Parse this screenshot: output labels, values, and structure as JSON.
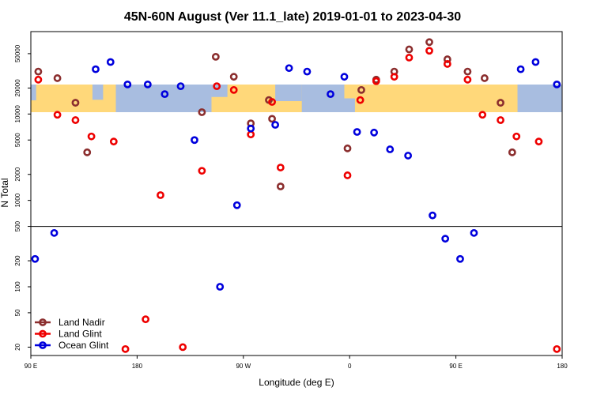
{
  "chart_data": {
    "type": "scatter",
    "title": "45N-60N August (Ver 11.1_late)   2019-01-01 to 2023-04-30",
    "xlabel": "Longitude (deg E)",
    "ylabel": "N Total",
    "y_scale": "log",
    "ylim": [
      16,
      90000
    ],
    "reference_line_y": 500,
    "background": "world map band, latitudes 45N-60N, land shown in gold, ocean in light blue, repeated across the longitude axis",
    "background_colors": {
      "land": "#ffd87a",
      "ocean": "#a8bde0"
    },
    "x_ticks": [
      {
        "pos": 0,
        "label": "90 E"
      },
      {
        "pos": 1,
        "label": "180"
      },
      {
        "pos": 2,
        "label": "90 W"
      },
      {
        "pos": 3,
        "label": "0"
      },
      {
        "pos": 4,
        "label": "90 E"
      },
      {
        "pos": 5,
        "label": "180"
      }
    ],
    "y_ticks": [
      {
        "value": 20,
        "label": "20"
      },
      {
        "value": 50,
        "label": "50"
      },
      {
        "value": 100,
        "label": "100"
      },
      {
        "value": 200,
        "label": "200"
      },
      {
        "value": 500,
        "label": "500"
      },
      {
        "value": 1000,
        "label": "1000"
      },
      {
        "value": 2000,
        "label": "2000"
      },
      {
        "value": 5000,
        "label": "5000"
      },
      {
        "value": 10000,
        "label": "10000"
      },
      {
        "value": 20000,
        "label": "20000"
      },
      {
        "value": 50000,
        "label": "50000"
      }
    ],
    "legend_position": "bottom-left",
    "series": [
      {
        "name": "Land Nadir",
        "color": "#8b2e2e",
        "points": [
          [
            0.07,
            31000
          ],
          [
            0.25,
            26000
          ],
          [
            0.42,
            13500
          ],
          [
            0.53,
            3600
          ],
          [
            1.74,
            46000
          ],
          [
            1.61,
            10500
          ],
          [
            1.91,
            27000
          ],
          [
            2.07,
            7800
          ],
          [
            2.27,
            8800
          ],
          [
            2.24,
            14500
          ],
          [
            2.35,
            1450
          ],
          [
            2.98,
            4000
          ],
          [
            3.11,
            19000
          ],
          [
            3.25,
            25000
          ],
          [
            3.42,
            31000
          ],
          [
            3.56,
            56000
          ],
          [
            3.75,
            68000
          ],
          [
            3.92,
            43000
          ],
          [
            4.11,
            31000
          ],
          [
            4.27,
            26000
          ],
          [
            4.42,
            13500
          ],
          [
            4.53,
            3600
          ]
        ]
      },
      {
        "name": "Land Glint",
        "color": "#ee0000",
        "points": [
          [
            0.07,
            25000
          ],
          [
            0.25,
            9800
          ],
          [
            0.42,
            8500
          ],
          [
            0.57,
            5500
          ],
          [
            0.78,
            4800
          ],
          [
            1.22,
            1150
          ],
          [
            1.61,
            2200
          ],
          [
            1.75,
            21000
          ],
          [
            1.91,
            19000
          ],
          [
            2.07,
            5800
          ],
          [
            2.27,
            13800
          ],
          [
            2.35,
            2400
          ],
          [
            2.98,
            1950
          ],
          [
            3.1,
            14500
          ],
          [
            3.25,
            24000
          ],
          [
            3.42,
            27000
          ],
          [
            3.56,
            45000
          ],
          [
            3.75,
            54000
          ],
          [
            3.92,
            38000
          ],
          [
            4.11,
            25000
          ],
          [
            4.25,
            9800
          ],
          [
            4.42,
            8500
          ],
          [
            4.57,
            5500
          ],
          [
            4.78,
            4800
          ],
          [
            0.89,
            19
          ],
          [
            1.08,
            42
          ],
          [
            1.43,
            20
          ],
          [
            4.95,
            19
          ]
        ]
      },
      {
        "name": "Ocean Glint",
        "color": "#0000dd",
        "points": [
          [
            0.04,
            210
          ],
          [
            0.22,
            420
          ],
          [
            0.61,
            33000
          ],
          [
            0.75,
            40000
          ],
          [
            0.91,
            22000
          ],
          [
            1.1,
            22000
          ],
          [
            1.26,
            17000
          ],
          [
            1.41,
            21000
          ],
          [
            1.54,
            5000
          ],
          [
            1.78,
            100
          ],
          [
            1.94,
            880
          ],
          [
            2.07,
            6800
          ],
          [
            2.3,
            7500
          ],
          [
            2.43,
            34000
          ],
          [
            2.6,
            31000
          ],
          [
            2.82,
            17000
          ],
          [
            2.95,
            27000
          ],
          [
            3.07,
            6200
          ],
          [
            3.23,
            6100
          ],
          [
            3.38,
            3900
          ],
          [
            3.55,
            3300
          ],
          [
            3.78,
            670
          ],
          [
            3.9,
            360
          ],
          [
            4.04,
            210
          ],
          [
            4.17,
            420
          ],
          [
            4.61,
            33000
          ],
          [
            4.75,
            40000
          ],
          [
            4.95,
            22000
          ]
        ]
      }
    ]
  }
}
